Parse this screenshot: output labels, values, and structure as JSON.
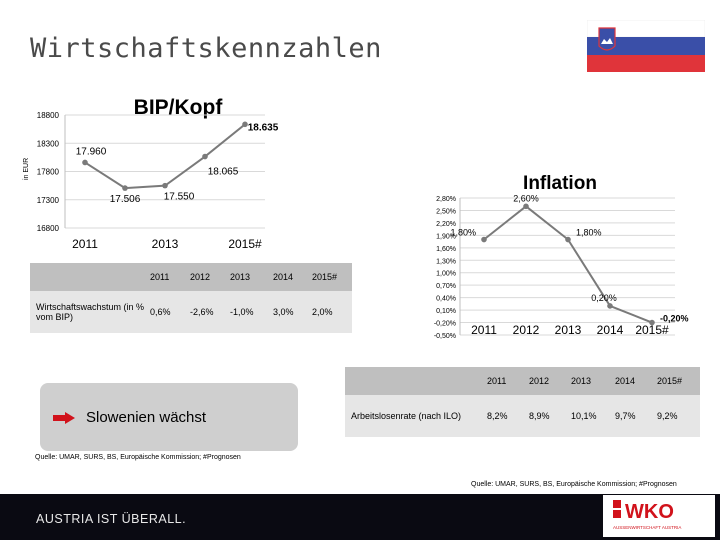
{
  "slide": {
    "title": "Wirtschaftskennzahlen",
    "colors": {
      "flag_white": "#ffffff",
      "flag_blue": "#3a4fa8",
      "flag_red": "#e0343a",
      "chart_line": "#7a7a7a",
      "wko_red": "#d1121b"
    },
    "icons": [
      "slovenia-flag-icon",
      "arrow-right-icon",
      "wko-logo"
    ]
  },
  "chart_data": [
    {
      "type": "line",
      "title": "BIP/Kopf",
      "ylabel": "in EUR",
      "x": [
        "2011",
        "2012",
        "2013",
        "2014",
        "2015#"
      ],
      "x_tick_labels": [
        "2011",
        "2013",
        "2015#"
      ],
      "series": [
        {
          "values": [
            17960,
            17506,
            17550,
            18065,
            18635
          ]
        }
      ],
      "data_labels": [
        "17.960",
        "17.506",
        "17.550",
        "18.065",
        "18.635"
      ],
      "y_tick_labels": [
        "16800",
        "17300",
        "17800",
        "18300",
        "18800"
      ],
      "ylim": [
        16800,
        18800
      ],
      "grid": true
    },
    {
      "type": "line",
      "title": "Inflation",
      "x": [
        "2011",
        "2012",
        "2013",
        "2014",
        "2015#"
      ],
      "series": [
        {
          "values": [
            1.8,
            2.6,
            1.8,
            0.2,
            -0.2
          ]
        }
      ],
      "data_labels": [
        "1,80%",
        "2,60%",
        "1,80%",
        "0,20%",
        "-0,20%"
      ],
      "y_tick_labels": [
        "2,80%",
        "2,50%",
        "2,20%",
        "1,90%",
        "1,60%",
        "1,30%",
        "1,00%",
        "0,70%",
        "0,40%",
        "0,10%",
        "-0,20%",
        "-0,50%"
      ],
      "ylim": [
        -0.5,
        2.8
      ],
      "grid": true
    }
  ],
  "growth_table": {
    "headers": [
      "2011",
      "2012",
      "2013",
      "2014",
      "2015#"
    ],
    "row_label": "Wirtschaftswachstum (in % vom BIP)",
    "values": [
      "0,6%",
      "-2,6%",
      "-1,0%",
      "3,0%",
      "2,0%"
    ]
  },
  "unemployment_table": {
    "headers": [
      "2011",
      "2012",
      "2013",
      "2014",
      "2015#"
    ],
    "row_label": "Arbeitslosenrate (nach ILO)",
    "values": [
      "8,2%",
      "8,9%",
      "10,1%",
      "9,7%",
      "9,2%"
    ]
  },
  "banner": {
    "label": "Slowenien wächst"
  },
  "sources": {
    "left": "Quelle: UMAR, SURS, BS, Europäische Kommission; #Prognosen",
    "right": "Quelle: UMAR, SURS, BS, Europäische Kommission; #Prognosen"
  },
  "footer": {
    "tagline": "AUSTRIA IST ÜBERALL.",
    "logo_text": "WKO",
    "logo_subtext": "AUSSENWIRTSCHAFT AUSTRIA"
  }
}
